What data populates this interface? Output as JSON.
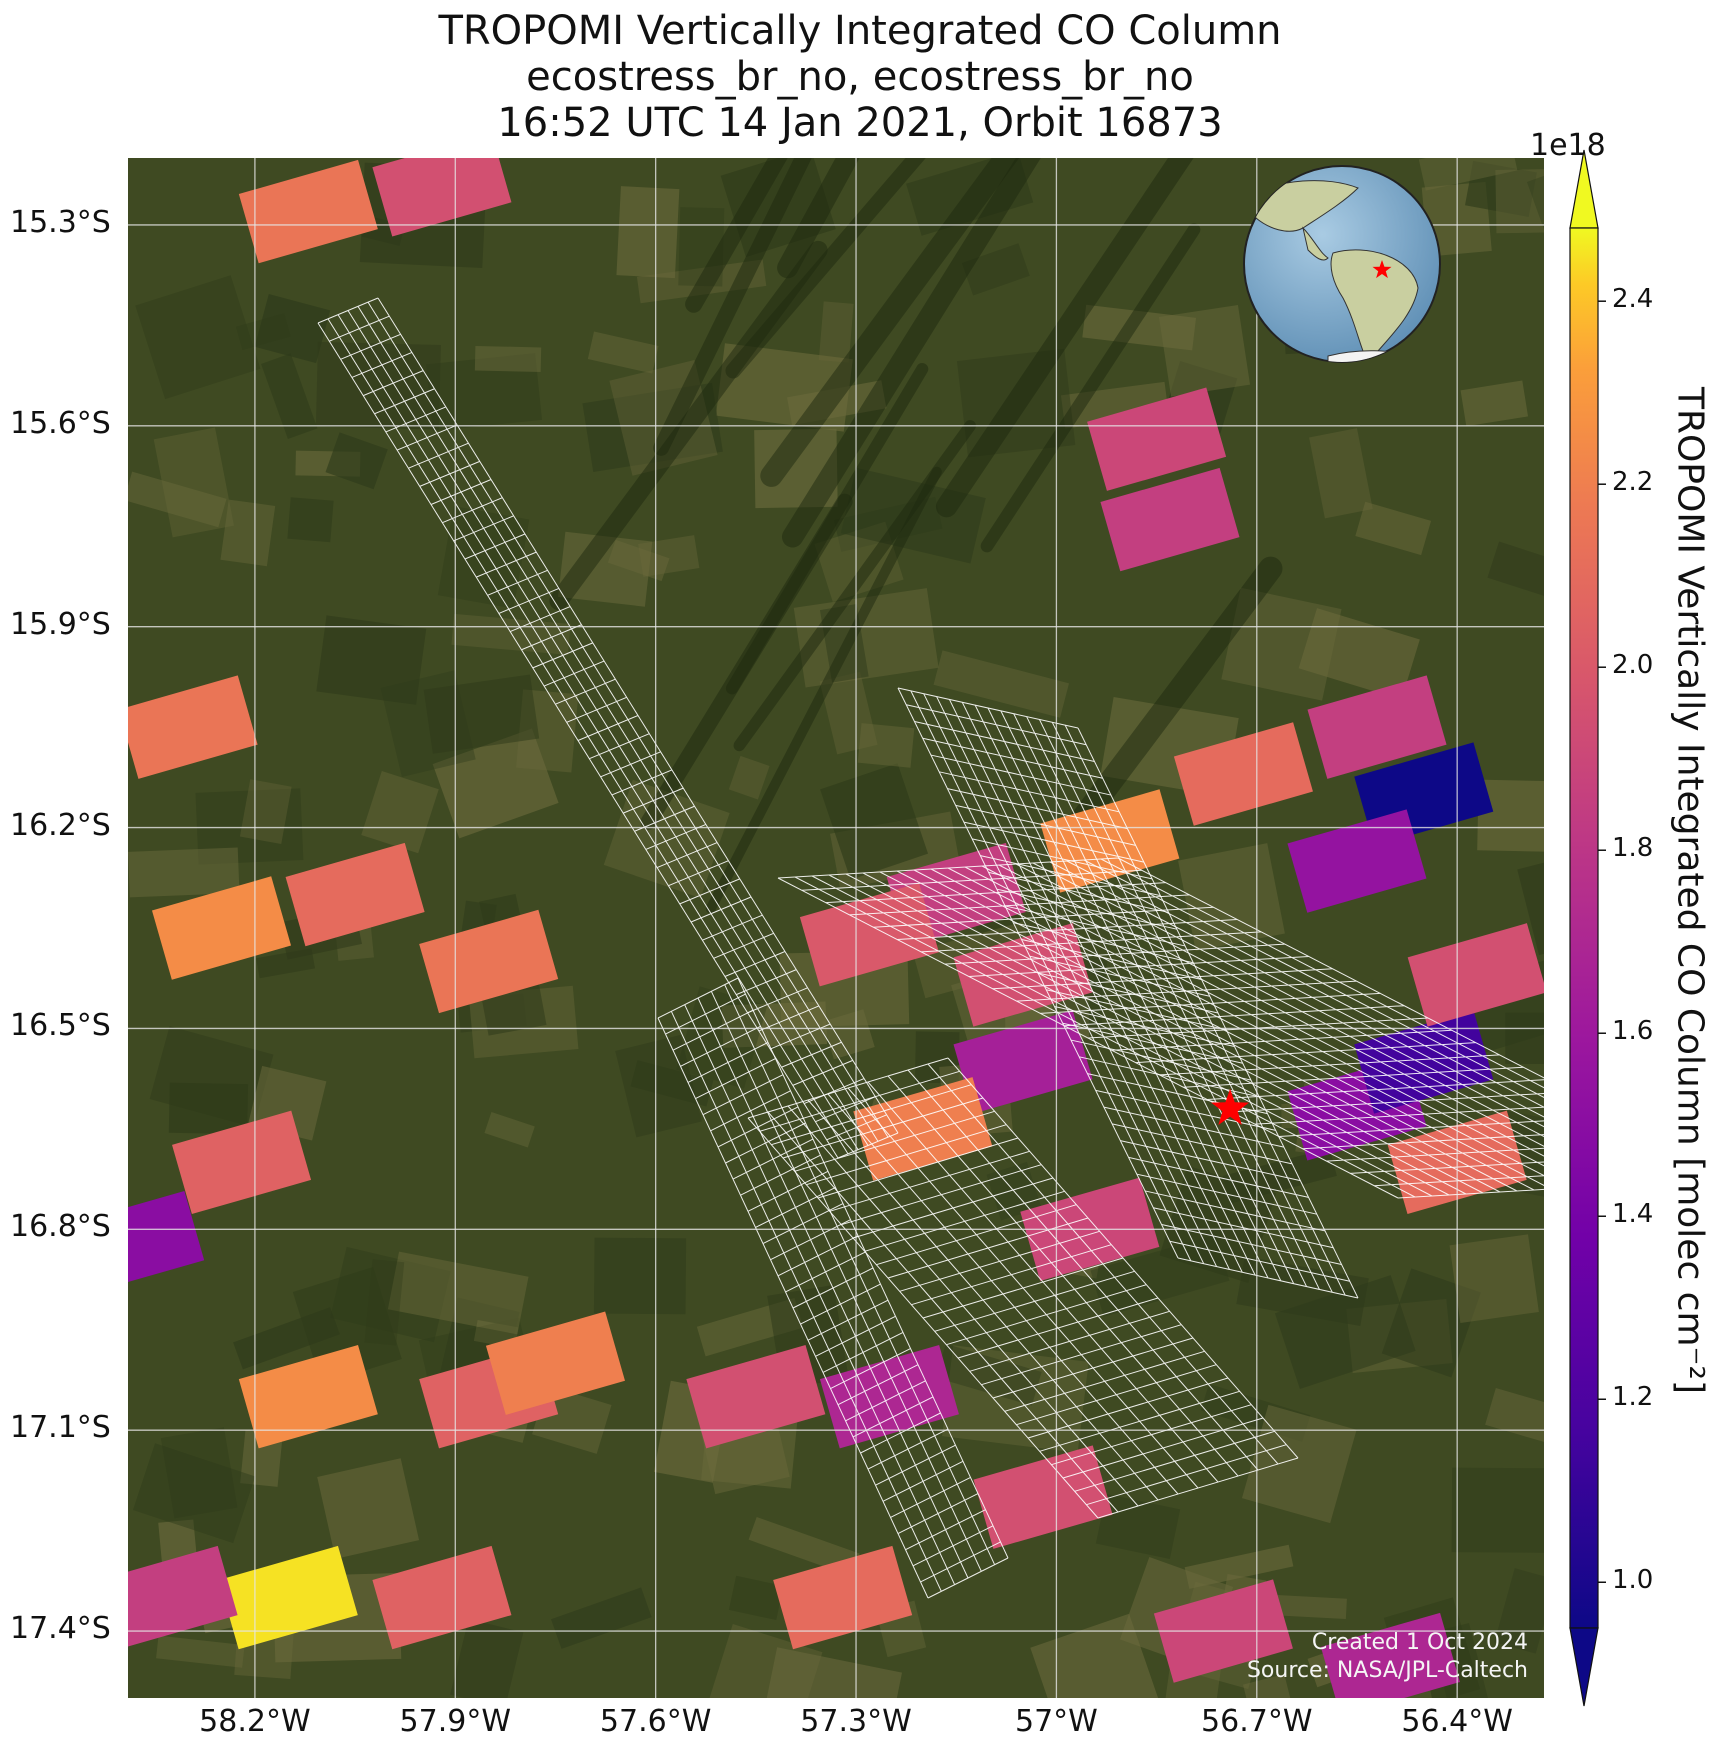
{
  "title": {
    "line1": "TROPOMI Vertically Integrated CO Column",
    "line2": "ecostress_br_no, ecostress_br_no",
    "line3": "16:52 UTC 14 Jan 2021, Orbit 16873"
  },
  "map": {
    "lon_range": [
      -58.39,
      -56.27
    ],
    "lat_range": [
      -17.5,
      -15.2
    ],
    "lat_ticks": [
      {
        "value": -15.3,
        "label": "15.3°S"
      },
      {
        "value": -15.6,
        "label": "15.6°S"
      },
      {
        "value": -15.9,
        "label": "15.9°S"
      },
      {
        "value": -16.2,
        "label": "16.2°S"
      },
      {
        "value": -16.5,
        "label": "16.5°S"
      },
      {
        "value": -16.8,
        "label": "16.8°S"
      },
      {
        "value": -17.1,
        "label": "17.1°S"
      },
      {
        "value": -17.4,
        "label": "17.4°S"
      }
    ],
    "lon_ticks": [
      {
        "value": -58.2,
        "label": "58.2°W"
      },
      {
        "value": -57.9,
        "label": "57.9°W"
      },
      {
        "value": -57.6,
        "label": "57.6°W"
      },
      {
        "value": -57.3,
        "label": "57.3°W"
      },
      {
        "value": -57.0,
        "label": "57°W"
      },
      {
        "value": -56.7,
        "label": "56.7°W"
      },
      {
        "value": -56.4,
        "label": "56.4°W"
      }
    ],
    "gridlines": true,
    "basemap_colors": {
      "vegetation": "#3f4a22",
      "dark": "#2e3a1a",
      "light": "#6b6a3c"
    },
    "marker": {
      "lon": -56.74,
      "lat": -16.62,
      "shape": "star",
      "color": "#ff0000"
    },
    "inset_globe": {
      "position": "top-right",
      "marker_color": "#ff0000"
    }
  },
  "colorbar": {
    "label": "TROPOMI Vertically Integrated CO Column [molec cm⁻²]",
    "exponent": "1e18",
    "range": [
      0.95,
      2.48
    ],
    "extend": "both",
    "colormap": "plasma",
    "ticks": [
      {
        "value": 1.0,
        "label": "1.0"
      },
      {
        "value": 1.2,
        "label": "1.2"
      },
      {
        "value": 1.4,
        "label": "1.4"
      },
      {
        "value": 1.6,
        "label": "1.6"
      },
      {
        "value": 1.8,
        "label": "1.8"
      },
      {
        "value": 2.0,
        "label": "2.0"
      },
      {
        "value": 2.2,
        "label": "2.2"
      },
      {
        "value": 2.4,
        "label": "2.4"
      }
    ]
  },
  "credits": {
    "created": "Created 1 Oct 2024",
    "source": "Source: NASA/JPL-Caltech"
  },
  "chart_data": {
    "type": "heatmap",
    "title": "TROPOMI Vertically Integrated CO Column",
    "colorbar_label": "TROPOMI Vertically Integrated CO Column [molec cm⁻²]",
    "units_scale": "1e18",
    "pixels": [
      {
        "lon": -58.12,
        "lat": -15.28,
        "value": 2.15
      },
      {
        "lon": -57.92,
        "lat": -15.24,
        "value": 1.95
      },
      {
        "lon": -56.85,
        "lat": -15.62,
        "value": 1.9
      },
      {
        "lon": -56.83,
        "lat": -15.74,
        "value": 1.85
      },
      {
        "lon": -56.52,
        "lat": -16.05,
        "value": 1.85
      },
      {
        "lon": -56.45,
        "lat": -16.15,
        "value": 0.95
      },
      {
        "lon": -56.72,
        "lat": -16.12,
        "value": 2.1
      },
      {
        "lon": -56.55,
        "lat": -16.25,
        "value": 1.55
      },
      {
        "lon": -56.92,
        "lat": -16.22,
        "value": 2.25
      },
      {
        "lon": -57.15,
        "lat": -16.3,
        "value": 1.85
      },
      {
        "lon": -57.05,
        "lat": -16.42,
        "value": 1.95
      },
      {
        "lon": -57.28,
        "lat": -16.36,
        "value": 2.0
      },
      {
        "lon": -57.05,
        "lat": -16.55,
        "value": 1.65
      },
      {
        "lon": -57.2,
        "lat": -16.65,
        "value": 2.2
      },
      {
        "lon": -56.95,
        "lat": -16.8,
        "value": 1.9
      },
      {
        "lon": -56.55,
        "lat": -16.62,
        "value": 1.5
      },
      {
        "lon": -56.45,
        "lat": -16.55,
        "value": 1.15
      },
      {
        "lon": -56.4,
        "lat": -16.7,
        "value": 2.1
      },
      {
        "lon": -56.37,
        "lat": -16.42,
        "value": 1.95
      },
      {
        "lon": -58.3,
        "lat": -16.05,
        "value": 2.15
      },
      {
        "lon": -58.25,
        "lat": -16.35,
        "value": 2.25
      },
      {
        "lon": -58.05,
        "lat": -16.3,
        "value": 2.1
      },
      {
        "lon": -57.85,
        "lat": -16.4,
        "value": 2.15
      },
      {
        "lon": -58.22,
        "lat": -16.7,
        "value": 2.05
      },
      {
        "lon": -58.38,
        "lat": -16.82,
        "value": 1.5
      },
      {
        "lon": -58.12,
        "lat": -17.05,
        "value": 2.25
      },
      {
        "lon": -57.85,
        "lat": -17.05,
        "value": 2.05
      },
      {
        "lon": -57.75,
        "lat": -17.0,
        "value": 2.2
      },
      {
        "lon": -58.15,
        "lat": -17.35,
        "value": 2.45
      },
      {
        "lon": -57.92,
        "lat": -17.35,
        "value": 2.05
      },
      {
        "lon": -58.33,
        "lat": -17.35,
        "value": 1.85
      },
      {
        "lon": -57.45,
        "lat": -17.05,
        "value": 1.95
      },
      {
        "lon": -57.25,
        "lat": -17.05,
        "value": 1.7
      },
      {
        "lon": -57.32,
        "lat": -17.35,
        "value": 2.1
      },
      {
        "lon": -57.02,
        "lat": -17.2,
        "value": 1.95
      },
      {
        "lon": -56.75,
        "lat": -17.4,
        "value": 1.9
      },
      {
        "lon": -56.5,
        "lat": -17.45,
        "value": 1.7
      }
    ]
  }
}
